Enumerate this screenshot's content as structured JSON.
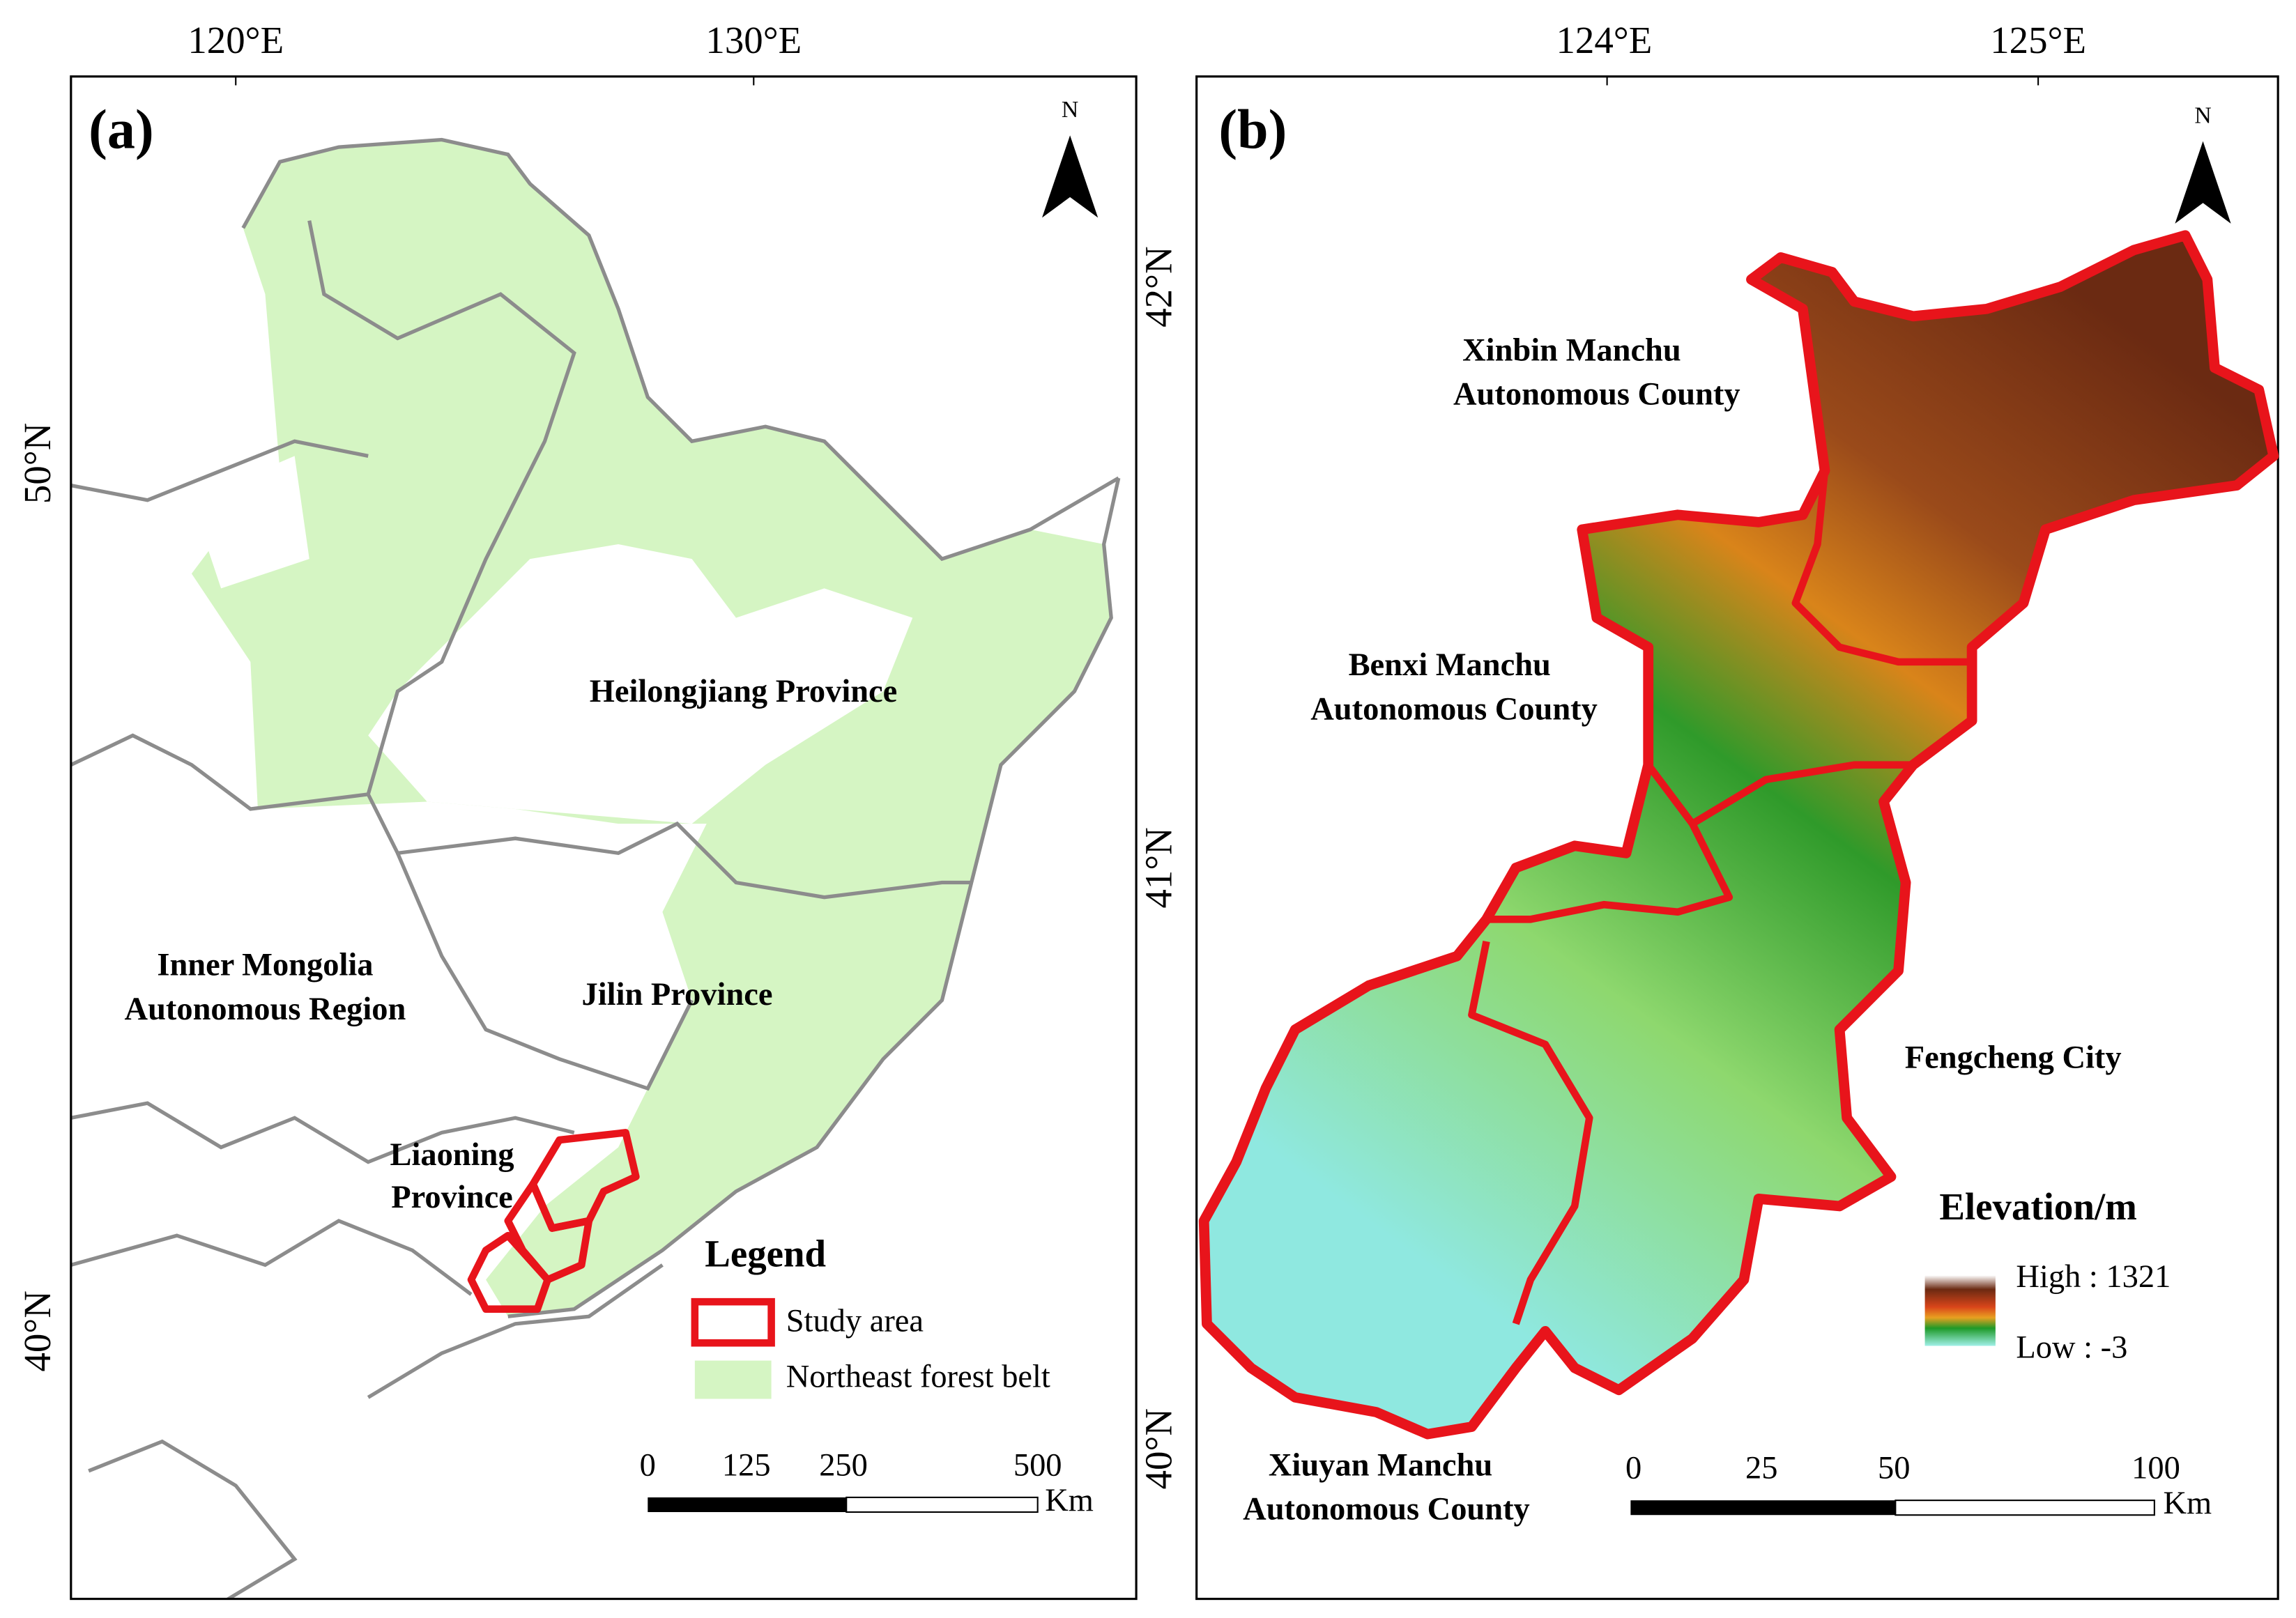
{
  "panel_a": {
    "label": "(a)",
    "top_ticks": [
      "120°E",
      "130°E"
    ],
    "left_ticks": [
      "50°N",
      "40°N"
    ],
    "north": "N",
    "regions": [
      "Heilongjiang Province",
      "Inner Mongolia",
      "Autonomous Region",
      "Jilin Province",
      "Liaoning",
      "Province"
    ],
    "legend": {
      "title": "Legend",
      "items": [
        "Study area",
        "Northeast forest belt"
      ]
    },
    "scale": {
      "labels": [
        "0",
        "125",
        "250",
        "500"
      ],
      "unit": "Km"
    }
  },
  "panel_b": {
    "label": "(b)",
    "top_ticks": [
      "124°E",
      "125°E"
    ],
    "left_ticks": [
      "42°N",
      "41°N",
      "40°N"
    ],
    "north": "N",
    "regions": [
      "Xinbin Manchu",
      "Autonomous County",
      "Benxi Manchu",
      "Autonomous County",
      "Fengcheng City",
      "Xiuyan Manchu",
      "Autonomous County"
    ],
    "legend": {
      "title": "Elevation/m",
      "high": "High : 1321",
      "low": "Low : -3"
    },
    "scale": {
      "labels": [
        "0",
        "25",
        "50",
        "100"
      ],
      "unit": "Km"
    }
  }
}
